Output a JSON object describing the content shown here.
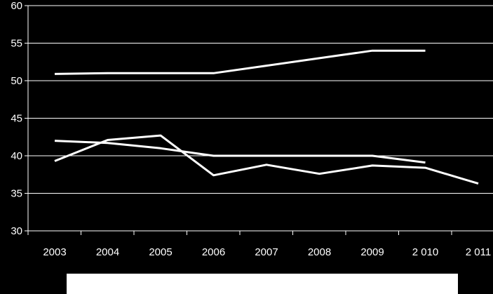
{
  "chart_data": {
    "type": "line",
    "categories": [
      "2003",
      "2004",
      "2005",
      "2006",
      "2007",
      "2008",
      "2009",
      "2 010",
      "2 011"
    ],
    "y_ticks": [
      "30",
      "35",
      "40",
      "45",
      "50",
      "55",
      "60"
    ],
    "ylim": [
      30,
      60
    ],
    "grid": true,
    "legend": "bottom",
    "colors": {
      "background": "#000000",
      "series": "#ffffff",
      "grid": "#ffffff",
      "legend_box": "#ffffff"
    },
    "series": [
      {
        "values": [
          50.9,
          51,
          51,
          51,
          52,
          53,
          54,
          54,
          null
        ]
      },
      {
        "values": [
          42,
          41.7,
          41,
          40,
          40,
          40,
          40,
          39.1,
          null
        ]
      },
      {
        "values": [
          39.3,
          42.1,
          42.7,
          37.4,
          38.8,
          37.6,
          38.7,
          38.4,
          36.3
        ]
      }
    ]
  }
}
